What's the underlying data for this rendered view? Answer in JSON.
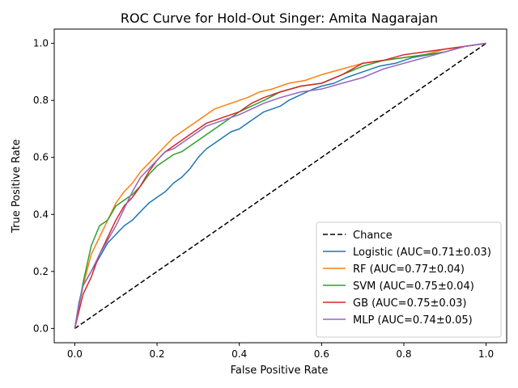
{
  "chart_data": {
    "type": "line",
    "title": "ROC Curve for Hold-Out Singer: Amita Nagarajan",
    "xlabel": "False Positive Rate",
    "ylabel": "True Positive Rate",
    "xlim": [
      -0.05,
      1.05
    ],
    "ylim": [
      -0.05,
      1.05
    ],
    "xticks": [
      0.0,
      0.2,
      0.4,
      0.6,
      0.8,
      1.0
    ],
    "yticks": [
      0.0,
      0.2,
      0.4,
      0.6,
      0.8,
      1.0
    ],
    "xtick_labels": [
      "0.0",
      "0.2",
      "0.4",
      "0.6",
      "0.8",
      "1.0"
    ],
    "ytick_labels": [
      "0.0",
      "0.2",
      "0.4",
      "0.6",
      "0.8",
      "1.0"
    ],
    "grid": false,
    "legend_position": "lower right",
    "series": [
      {
        "name": "Chance",
        "color": "#000000",
        "dashed": true,
        "x": [
          0.0,
          1.0
        ],
        "y": [
          0.0,
          1.0
        ]
      },
      {
        "name": "Logistic (AUC=0.71±0.03)",
        "color": "#1f77b4",
        "dashed": false,
        "x": [
          0.0,
          0.01,
          0.02,
          0.04,
          0.06,
          0.08,
          0.1,
          0.12,
          0.14,
          0.16,
          0.18,
          0.2,
          0.22,
          0.24,
          0.26,
          0.28,
          0.3,
          0.32,
          0.34,
          0.36,
          0.38,
          0.4,
          0.42,
          0.44,
          0.46,
          0.48,
          0.5,
          0.52,
          0.55,
          0.58,
          0.6,
          0.63,
          0.66,
          0.7,
          0.74,
          0.78,
          0.82,
          0.86,
          0.9,
          0.95,
          1.0
        ],
        "y": [
          0.0,
          0.09,
          0.15,
          0.2,
          0.25,
          0.3,
          0.33,
          0.36,
          0.38,
          0.41,
          0.44,
          0.46,
          0.48,
          0.51,
          0.53,
          0.56,
          0.6,
          0.63,
          0.65,
          0.67,
          0.69,
          0.7,
          0.72,
          0.74,
          0.76,
          0.77,
          0.78,
          0.8,
          0.82,
          0.84,
          0.85,
          0.86,
          0.88,
          0.9,
          0.92,
          0.93,
          0.95,
          0.96,
          0.97,
          0.99,
          1.0
        ]
      },
      {
        "name": "RF (AUC=0.77±0.04)",
        "color": "#ff7f0e",
        "dashed": false,
        "x": [
          0.0,
          0.01,
          0.02,
          0.04,
          0.06,
          0.08,
          0.1,
          0.12,
          0.14,
          0.16,
          0.18,
          0.2,
          0.22,
          0.24,
          0.26,
          0.28,
          0.3,
          0.32,
          0.34,
          0.36,
          0.38,
          0.4,
          0.42,
          0.45,
          0.48,
          0.52,
          0.56,
          0.6,
          0.65,
          0.7,
          0.75,
          0.8,
          0.85,
          0.9,
          0.95,
          1.0
        ],
        "y": [
          0.0,
          0.08,
          0.15,
          0.26,
          0.32,
          0.38,
          0.44,
          0.48,
          0.51,
          0.55,
          0.58,
          0.61,
          0.64,
          0.67,
          0.69,
          0.71,
          0.73,
          0.75,
          0.77,
          0.78,
          0.79,
          0.8,
          0.81,
          0.83,
          0.84,
          0.86,
          0.87,
          0.89,
          0.91,
          0.93,
          0.94,
          0.95,
          0.96,
          0.98,
          0.99,
          1.0
        ]
      },
      {
        "name": "SVM (AUC=0.75±0.04)",
        "color": "#2ca02c",
        "dashed": false,
        "x": [
          0.0,
          0.01,
          0.02,
          0.04,
          0.06,
          0.08,
          0.1,
          0.12,
          0.14,
          0.16,
          0.18,
          0.2,
          0.22,
          0.24,
          0.26,
          0.28,
          0.3,
          0.32,
          0.34,
          0.36,
          0.38,
          0.4,
          0.43,
          0.46,
          0.5,
          0.55,
          0.6,
          0.65,
          0.7,
          0.75,
          0.8,
          0.85,
          0.9,
          0.95,
          1.0
        ],
        "y": [
          0.0,
          0.08,
          0.16,
          0.29,
          0.36,
          0.38,
          0.43,
          0.45,
          0.47,
          0.5,
          0.54,
          0.57,
          0.59,
          0.61,
          0.62,
          0.64,
          0.66,
          0.68,
          0.7,
          0.72,
          0.74,
          0.76,
          0.78,
          0.8,
          0.83,
          0.85,
          0.86,
          0.89,
          0.92,
          0.94,
          0.95,
          0.96,
          0.97,
          0.99,
          1.0
        ]
      },
      {
        "name": "GB (AUC=0.75±0.03)",
        "color": "#d62728",
        "dashed": false,
        "x": [
          0.0,
          0.01,
          0.02,
          0.04,
          0.06,
          0.08,
          0.1,
          0.12,
          0.14,
          0.16,
          0.18,
          0.2,
          0.22,
          0.24,
          0.26,
          0.28,
          0.3,
          0.32,
          0.34,
          0.36,
          0.38,
          0.4,
          0.43,
          0.46,
          0.5,
          0.55,
          0.6,
          0.65,
          0.7,
          0.75,
          0.8,
          0.85,
          0.9,
          0.95,
          1.0
        ],
        "y": [
          0.0,
          0.06,
          0.12,
          0.18,
          0.26,
          0.32,
          0.38,
          0.43,
          0.46,
          0.5,
          0.55,
          0.59,
          0.62,
          0.64,
          0.66,
          0.68,
          0.7,
          0.72,
          0.73,
          0.74,
          0.75,
          0.76,
          0.79,
          0.81,
          0.83,
          0.85,
          0.86,
          0.89,
          0.93,
          0.94,
          0.96,
          0.97,
          0.98,
          0.99,
          1.0
        ]
      },
      {
        "name": "MLP (AUC=0.74±0.05)",
        "color": "#9467bd",
        "dashed": false,
        "x": [
          0.0,
          0.01,
          0.02,
          0.04,
          0.06,
          0.08,
          0.1,
          0.12,
          0.14,
          0.16,
          0.18,
          0.2,
          0.22,
          0.24,
          0.26,
          0.28,
          0.3,
          0.32,
          0.34,
          0.36,
          0.38,
          0.4,
          0.43,
          0.46,
          0.5,
          0.55,
          0.6,
          0.65,
          0.7,
          0.75,
          0.8,
          0.85,
          0.9,
          0.95,
          1.0
        ],
        "y": [
          0.0,
          0.08,
          0.15,
          0.2,
          0.26,
          0.31,
          0.36,
          0.42,
          0.48,
          0.53,
          0.56,
          0.59,
          0.62,
          0.63,
          0.65,
          0.67,
          0.69,
          0.71,
          0.72,
          0.73,
          0.74,
          0.75,
          0.77,
          0.79,
          0.81,
          0.83,
          0.84,
          0.86,
          0.88,
          0.91,
          0.93,
          0.95,
          0.97,
          0.99,
          1.0
        ]
      }
    ]
  }
}
